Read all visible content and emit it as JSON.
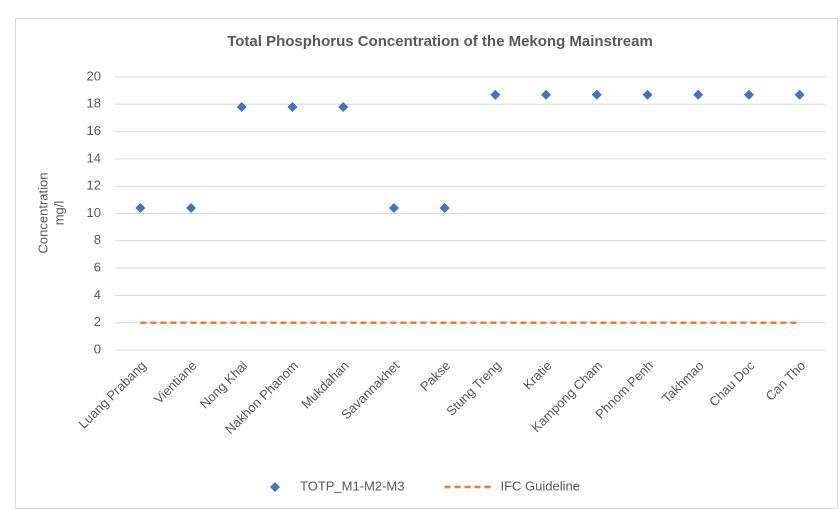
{
  "chart_data": {
    "type": "scatter",
    "title": "Total Phosphorus Concentration of the Mekong Mainstream",
    "y_label": [
      "Concentration",
      "mg/l"
    ],
    "categories": [
      "Luang Prabang",
      "Vientiane",
      "Nong Khai",
      "Nakhon Phanom",
      "Mukdahan",
      "Savannakhet",
      "Pakse",
      "Stung Treng",
      "Kratie",
      "Kampong Cham",
      "Phnom Penh",
      "Takhmao",
      "Chau Doc",
      "Can Tho"
    ],
    "series": [
      {
        "name": "TOTP_M1-M2-M3",
        "color": "#4472c4",
        "style": "marker",
        "values": [
          10.4,
          10.4,
          17.8,
          17.8,
          17.8,
          10.4,
          10.4,
          18.7,
          18.7,
          18.7,
          18.7,
          18.7,
          18.7,
          18.7
        ]
      },
      {
        "name": "IFC Guideline",
        "color": "#ed7d31",
        "style": "dashed",
        "values": [
          2,
          2,
          2,
          2,
          2,
          2,
          2,
          2,
          2,
          2,
          2,
          2,
          2,
          2
        ]
      }
    ],
    "ylim": [
      0,
      20
    ],
    "yticks": [
      0,
      2,
      4,
      6,
      8,
      10,
      12,
      14,
      16,
      18,
      20
    ],
    "grid": true,
    "legend": "bottom"
  }
}
